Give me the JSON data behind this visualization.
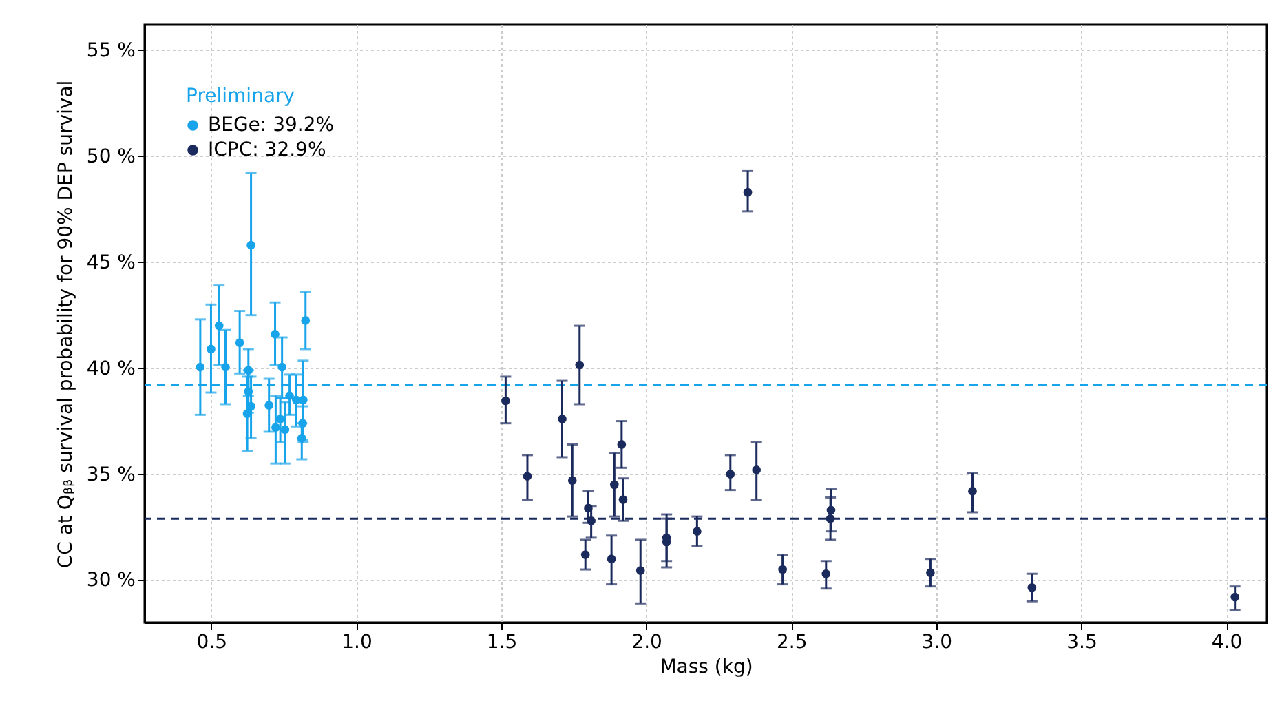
{
  "chart_data": {
    "type": "scatter",
    "xlabel": "Mass (kg)",
    "ylabel": "CC at Qᵦᵦ survival probability for 90% DEP survival",
    "annotations": [
      "Preliminary"
    ],
    "xlim": [
      0.27,
      4.14
    ],
    "ylim": [
      28.0,
      56.2
    ],
    "xticks": [
      {
        "value": 0.5,
        "label": "0.5"
      },
      {
        "value": 1.0,
        "label": "1.0"
      },
      {
        "value": 1.5,
        "label": "1.5"
      },
      {
        "value": 2.0,
        "label": "2.0"
      },
      {
        "value": 2.5,
        "label": "2.5"
      },
      {
        "value": 3.0,
        "label": "3.0"
      },
      {
        "value": 3.5,
        "label": "3.5"
      },
      {
        "value": 4.0,
        "label": "4.0"
      }
    ],
    "yticks": [
      {
        "value": 30,
        "label": "30 %"
      },
      {
        "value": 35,
        "label": "35 %"
      },
      {
        "value": 40,
        "label": "40 %"
      },
      {
        "value": 45,
        "label": "45 %"
      },
      {
        "value": 50,
        "label": "50 %"
      },
      {
        "value": 55,
        "label": "55 %"
      }
    ],
    "grid": true,
    "legend": "top left",
    "marker": "circle",
    "series": [
      {
        "name": "BEGe: 39.2%",
        "color": "#18a4ea",
        "x": [
          0.462,
          0.499,
          0.527,
          0.549,
          0.598,
          0.637,
          0.628,
          0.628,
          0.637,
          0.624,
          0.72,
          0.744,
          0.699,
          0.722,
          0.738,
          0.754,
          0.77,
          0.793,
          0.817,
          0.815,
          0.812,
          0.825
        ],
        "values": [
          40.05,
          40.9,
          42.0,
          40.05,
          41.2,
          45.8,
          39.9,
          38.9,
          38.2,
          37.85,
          41.6,
          40.05,
          38.25,
          37.2,
          37.6,
          37.1,
          38.7,
          38.5,
          38.5,
          37.4,
          36.7,
          42.25
        ],
        "errors": [
          [
            37.8,
            42.3
          ],
          [
            38.85,
            43.0
          ],
          [
            40.15,
            43.9
          ],
          [
            38.3,
            41.8
          ],
          [
            39.75,
            42.7
          ],
          [
            42.5,
            49.2
          ],
          [
            38.7,
            40.9
          ],
          [
            37.9,
            39.9
          ],
          [
            36.7,
            39.6
          ],
          [
            36.1,
            39.6
          ],
          [
            40.15,
            43.1
          ],
          [
            38.6,
            41.45
          ],
          [
            37.0,
            39.5
          ],
          [
            35.5,
            38.7
          ],
          [
            36.5,
            38.6
          ],
          [
            35.5,
            38.4
          ],
          [
            37.8,
            39.7
          ],
          [
            37.25,
            39.7
          ],
          [
            36.5,
            40.35
          ],
          [
            36.6,
            38.2
          ],
          [
            35.7,
            37.4
          ],
          [
            40.9,
            43.6
          ]
        ]
      },
      {
        "name": "ICPC: 32.9%",
        "color": "#1b2a5c",
        "x": [
          1.515,
          1.59,
          1.71,
          1.77,
          1.745,
          1.8,
          1.81,
          1.79,
          1.89,
          1.915,
          1.92,
          1.88,
          1.98,
          2.07,
          2.07,
          2.175,
          2.29,
          2.38,
          2.47,
          2.62,
          2.35,
          2.637,
          2.635,
          3.125,
          2.98,
          3.33,
          4.03
        ],
        "values": [
          38.46,
          34.9,
          37.6,
          40.15,
          34.7,
          33.4,
          32.8,
          31.2,
          34.5,
          36.4,
          33.8,
          31.0,
          30.45,
          32.0,
          31.8,
          32.3,
          35.0,
          35.2,
          30.5,
          30.3,
          48.3,
          33.3,
          32.9,
          34.2,
          30.35,
          29.65,
          29.2
        ],
        "errors": [
          [
            37.4,
            39.6
          ],
          [
            33.8,
            35.9
          ],
          [
            35.8,
            39.4
          ],
          [
            38.3,
            42.0
          ],
          [
            33.0,
            36.4
          ],
          [
            32.7,
            34.2
          ],
          [
            32.0,
            33.5
          ],
          [
            30.5,
            31.9
          ],
          [
            33.0,
            36.0
          ],
          [
            35.3,
            37.5
          ],
          [
            32.8,
            34.8
          ],
          [
            29.8,
            32.1
          ],
          [
            28.9,
            31.9
          ],
          [
            30.6,
            33.1
          ],
          [
            30.9,
            32.9
          ],
          [
            31.6,
            33.0
          ],
          [
            34.25,
            35.9
          ],
          [
            33.8,
            36.5
          ],
          [
            29.8,
            31.2
          ],
          [
            29.6,
            30.9
          ],
          [
            47.4,
            49.3
          ],
          [
            32.3,
            34.3
          ],
          [
            31.9,
            33.9
          ],
          [
            33.2,
            35.05
          ],
          [
            29.7,
            31.0
          ],
          [
            29.0,
            30.3
          ],
          [
            28.6,
            29.7
          ]
        ]
      }
    ],
    "ref_lines": [
      {
        "axis": "y",
        "value": 39.2,
        "label": null,
        "color": "#18a4ea",
        "line_style": "dashed"
      },
      {
        "axis": "y",
        "value": 32.9,
        "label": null,
        "color": "#1b2a5c",
        "line_style": "dashed"
      }
    ]
  }
}
